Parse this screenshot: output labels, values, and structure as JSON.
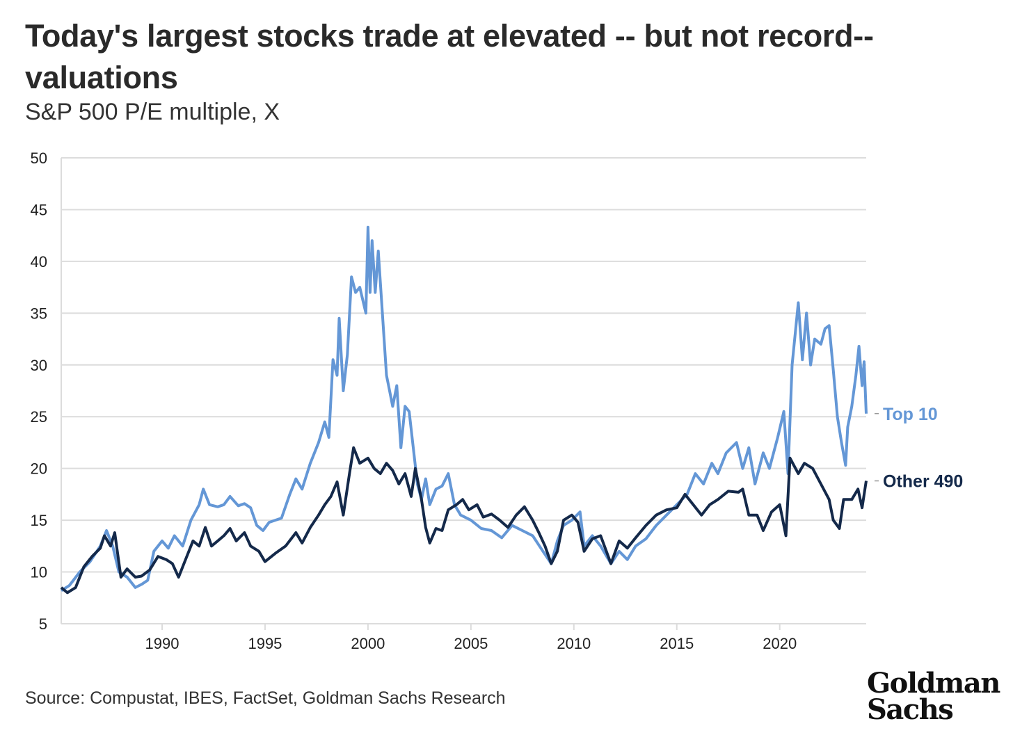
{
  "chart_data": {
    "type": "line",
    "title": "Today's largest stocks trade at elevated -- but not record--valuations",
    "subtitle": "S&P 500 P/E multiple, X",
    "xlabel": "",
    "ylabel": "",
    "xlim": [
      1985.1,
      2024.2
    ],
    "ylim": [
      5,
      50
    ],
    "grid": true,
    "yticks": [
      5,
      10,
      15,
      20,
      25,
      30,
      35,
      40,
      45,
      50
    ],
    "xticks": [
      1990,
      1995,
      2000,
      2005,
      2010,
      2015,
      2020
    ],
    "legend_placement": "right-end-labels",
    "series": [
      {
        "name": "Top 10",
        "color": "#6497d6",
        "points": [
          [
            1985.1,
            8.2
          ],
          [
            1985.5,
            8.7
          ],
          [
            1986,
            10.0
          ],
          [
            1986.5,
            11.0
          ],
          [
            1987,
            12.5
          ],
          [
            1987.3,
            14
          ],
          [
            1987.6,
            12.5
          ],
          [
            1987.9,
            10
          ],
          [
            1988.3,
            9.5
          ],
          [
            1988.7,
            8.5
          ],
          [
            1989,
            8.8
          ],
          [
            1989.3,
            9.2
          ],
          [
            1989.6,
            12
          ],
          [
            1990,
            13
          ],
          [
            1990.3,
            12.3
          ],
          [
            1990.6,
            13.5
          ],
          [
            1991,
            12.5
          ],
          [
            1991.4,
            15
          ],
          [
            1991.8,
            16.5
          ],
          [
            1992,
            18
          ],
          [
            1992.3,
            16.5
          ],
          [
            1992.7,
            16.3
          ],
          [
            1993,
            16.5
          ],
          [
            1993.3,
            17.3
          ],
          [
            1993.7,
            16.4
          ],
          [
            1994,
            16.6
          ],
          [
            1994.3,
            16.2
          ],
          [
            1994.6,
            14.5
          ],
          [
            1994.9,
            14
          ],
          [
            1995.2,
            14.8
          ],
          [
            1995.5,
            15
          ],
          [
            1995.8,
            15.2
          ],
          [
            1996.2,
            17.5
          ],
          [
            1996.5,
            19
          ],
          [
            1996.8,
            18
          ],
          [
            1997.2,
            20.5
          ],
          [
            1997.6,
            22.5
          ],
          [
            1997.9,
            24.5
          ],
          [
            1998.1,
            23
          ],
          [
            1998.3,
            30.5
          ],
          [
            1998.5,
            29
          ],
          [
            1998.6,
            34.5
          ],
          [
            1998.8,
            27.5
          ],
          [
            1999.0,
            31
          ],
          [
            1999.2,
            38.5
          ],
          [
            1999.4,
            37
          ],
          [
            1999.6,
            37.5
          ],
          [
            1999.9,
            35
          ],
          [
            2000.0,
            43.3
          ],
          [
            2000.1,
            37
          ],
          [
            2000.2,
            42
          ],
          [
            2000.35,
            37
          ],
          [
            2000.5,
            41
          ],
          [
            2000.7,
            35
          ],
          [
            2000.9,
            29
          ],
          [
            2001.0,
            28
          ],
          [
            2001.2,
            26
          ],
          [
            2001.4,
            28
          ],
          [
            2001.6,
            22
          ],
          [
            2001.8,
            26
          ],
          [
            2002.0,
            25.5
          ],
          [
            2002.2,
            22
          ],
          [
            2002.4,
            18.5
          ],
          [
            2002.6,
            17
          ],
          [
            2002.8,
            19
          ],
          [
            2003.0,
            16.5
          ],
          [
            2003.3,
            18
          ],
          [
            2003.6,
            18.3
          ],
          [
            2003.9,
            19.5
          ],
          [
            2004.2,
            16.5
          ],
          [
            2004.5,
            15.5
          ],
          [
            2005,
            15
          ],
          [
            2005.5,
            14.2
          ],
          [
            2006,
            14
          ],
          [
            2006.5,
            13.3
          ],
          [
            2007,
            14.5
          ],
          [
            2007.5,
            14
          ],
          [
            2008,
            13.5
          ],
          [
            2008.5,
            12
          ],
          [
            2008.9,
            10.8
          ],
          [
            2009.2,
            13
          ],
          [
            2009.5,
            14.5
          ],
          [
            2009.9,
            15
          ],
          [
            2010.3,
            15.8
          ],
          [
            2010.5,
            12.5
          ],
          [
            2010.9,
            13.5
          ],
          [
            2011.3,
            12.5
          ],
          [
            2011.8,
            10.8
          ],
          [
            2012.2,
            12
          ],
          [
            2012.6,
            11.2
          ],
          [
            2013,
            12.5
          ],
          [
            2013.5,
            13.2
          ],
          [
            2014,
            14.5
          ],
          [
            2014.5,
            15.5
          ],
          [
            2015,
            16.5
          ],
          [
            2015.5,
            17.5
          ],
          [
            2015.9,
            19.5
          ],
          [
            2016.3,
            18.5
          ],
          [
            2016.7,
            20.5
          ],
          [
            2017,
            19.5
          ],
          [
            2017.4,
            21.5
          ],
          [
            2017.9,
            22.5
          ],
          [
            2018.2,
            20
          ],
          [
            2018.5,
            22
          ],
          [
            2018.8,
            18.5
          ],
          [
            2019.2,
            21.5
          ],
          [
            2019.5,
            20
          ],
          [
            2019.9,
            23
          ],
          [
            2020.2,
            25.5
          ],
          [
            2020.4,
            19.5
          ],
          [
            2020.6,
            30
          ],
          [
            2020.9,
            36
          ],
          [
            2021.1,
            30.5
          ],
          [
            2021.3,
            35
          ],
          [
            2021.5,
            30
          ],
          [
            2021.7,
            32.5
          ],
          [
            2022.0,
            32
          ],
          [
            2022.2,
            33.5
          ],
          [
            2022.4,
            33.8
          ],
          [
            2022.6,
            29.5
          ],
          [
            2022.8,
            25
          ],
          [
            2023.0,
            22.5
          ],
          [
            2023.2,
            20.3
          ],
          [
            2023.3,
            24
          ],
          [
            2023.5,
            26
          ],
          [
            2023.7,
            29
          ],
          [
            2023.85,
            31.8
          ],
          [
            2024.0,
            28
          ],
          [
            2024.1,
            30.3
          ],
          [
            2024.2,
            25.3
          ]
        ]
      },
      {
        "name": "Other 490",
        "color": "#14294a",
        "points": [
          [
            1985.1,
            8.5
          ],
          [
            1985.4,
            8
          ],
          [
            1985.8,
            8.5
          ],
          [
            1986.2,
            10.5
          ],
          [
            1986.6,
            11.5
          ],
          [
            1987,
            12.3
          ],
          [
            1987.2,
            13.5
          ],
          [
            1987.5,
            12.5
          ],
          [
            1987.7,
            13.8
          ],
          [
            1988,
            9.5
          ],
          [
            1988.3,
            10.3
          ],
          [
            1988.7,
            9.5
          ],
          [
            1989,
            9.6
          ],
          [
            1989.4,
            10.2
          ],
          [
            1989.8,
            11.5
          ],
          [
            1990.2,
            11.2
          ],
          [
            1990.5,
            10.8
          ],
          [
            1990.8,
            9.5
          ],
          [
            1991.2,
            11.5
          ],
          [
            1991.5,
            13
          ],
          [
            1991.8,
            12.5
          ],
          [
            1992.1,
            14.3
          ],
          [
            1992.4,
            12.5
          ],
          [
            1992.7,
            13
          ],
          [
            1993,
            13.5
          ],
          [
            1993.3,
            14.2
          ],
          [
            1993.6,
            13
          ],
          [
            1994,
            13.8
          ],
          [
            1994.3,
            12.5
          ],
          [
            1994.7,
            12
          ],
          [
            1995,
            11
          ],
          [
            1995.5,
            11.8
          ],
          [
            1996,
            12.5
          ],
          [
            1996.5,
            13.8
          ],
          [
            1996.8,
            12.8
          ],
          [
            1997.2,
            14.3
          ],
          [
            1997.6,
            15.5
          ],
          [
            1997.9,
            16.5
          ],
          [
            1998.2,
            17.3
          ],
          [
            1998.5,
            18.7
          ],
          [
            1998.8,
            15.5
          ],
          [
            1999.1,
            19.5
          ],
          [
            1999.3,
            22
          ],
          [
            1999.6,
            20.5
          ],
          [
            2000,
            21
          ],
          [
            2000.3,
            20
          ],
          [
            2000.6,
            19.5
          ],
          [
            2000.9,
            20.5
          ],
          [
            2001.2,
            19.8
          ],
          [
            2001.5,
            18.5
          ],
          [
            2001.8,
            19.5
          ],
          [
            2002.1,
            17.3
          ],
          [
            2002.3,
            20
          ],
          [
            2002.6,
            17
          ],
          [
            2002.8,
            14.3
          ],
          [
            2003,
            12.8
          ],
          [
            2003.3,
            14.2
          ],
          [
            2003.6,
            14
          ],
          [
            2003.9,
            16
          ],
          [
            2004.3,
            16.5
          ],
          [
            2004.6,
            17
          ],
          [
            2004.9,
            16
          ],
          [
            2005.3,
            16.5
          ],
          [
            2005.6,
            15.3
          ],
          [
            2006,
            15.6
          ],
          [
            2006.4,
            15
          ],
          [
            2006.8,
            14.3
          ],
          [
            2007.2,
            15.5
          ],
          [
            2007.6,
            16.3
          ],
          [
            2008,
            15
          ],
          [
            2008.3,
            13.8
          ],
          [
            2008.6,
            12.5
          ],
          [
            2008.9,
            10.8
          ],
          [
            2009.2,
            12
          ],
          [
            2009.5,
            15
          ],
          [
            2009.9,
            15.5
          ],
          [
            2010.2,
            14.8
          ],
          [
            2010.5,
            12
          ],
          [
            2010.9,
            13.2
          ],
          [
            2011.3,
            13.5
          ],
          [
            2011.8,
            10.8
          ],
          [
            2012.2,
            13
          ],
          [
            2012.6,
            12.3
          ],
          [
            2013,
            13.3
          ],
          [
            2013.5,
            14.5
          ],
          [
            2014,
            15.5
          ],
          [
            2014.5,
            16
          ],
          [
            2015,
            16.2
          ],
          [
            2015.4,
            17.5
          ],
          [
            2015.8,
            16.5
          ],
          [
            2016.2,
            15.5
          ],
          [
            2016.6,
            16.5
          ],
          [
            2017,
            17
          ],
          [
            2017.5,
            17.8
          ],
          [
            2018,
            17.7
          ],
          [
            2018.2,
            18
          ],
          [
            2018.5,
            15.5
          ],
          [
            2018.9,
            15.5
          ],
          [
            2019.2,
            14
          ],
          [
            2019.6,
            15.8
          ],
          [
            2020.0,
            16.5
          ],
          [
            2020.3,
            13.5
          ],
          [
            2020.5,
            21
          ],
          [
            2020.9,
            19.5
          ],
          [
            2021.2,
            20.5
          ],
          [
            2021.6,
            20
          ],
          [
            2022,
            18.5
          ],
          [
            2022.4,
            17
          ],
          [
            2022.6,
            15
          ],
          [
            2022.9,
            14.2
          ],
          [
            2023.1,
            17
          ],
          [
            2023.5,
            17
          ],
          [
            2023.8,
            18
          ],
          [
            2024.0,
            16.2
          ],
          [
            2024.2,
            18.8
          ]
        ]
      }
    ],
    "source": "Source: Compustat, IBES, FactSet, Goldman Sachs Research",
    "logo_text": "Goldman Sachs"
  }
}
